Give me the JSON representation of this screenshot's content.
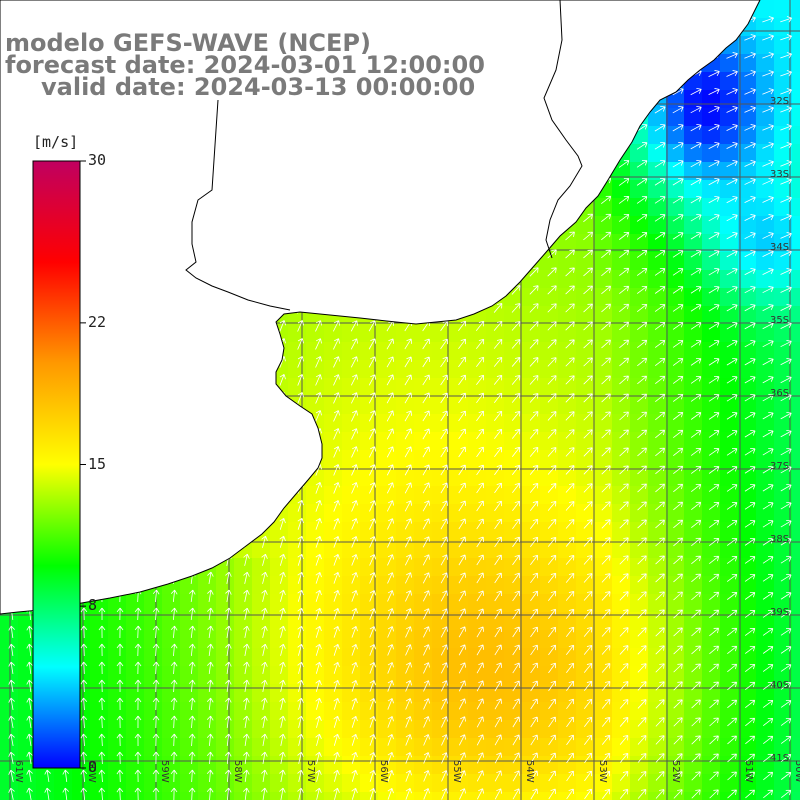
{
  "header": {
    "model": "modelo GEFS-WAVE (NCEP)",
    "forecast": "forecast date: 2024-03-01 12:00:00",
    "valid": "valid date: 2024-03-13 00:00:00"
  },
  "colorbar": {
    "unit": "[m/s]",
    "min": 0,
    "max": 30,
    "tick_labels": [
      "30",
      "22",
      "15",
      "8",
      "0"
    ],
    "tick_values": [
      30,
      22,
      15,
      8,
      0
    ],
    "colors": [
      "#0000ff",
      "#00ffff",
      "#00ff00",
      "#ffff00",
      "#ff9900",
      "#ff0000",
      "#c00060"
    ]
  },
  "map": {
    "quantity": "wind speed",
    "lat_labels": [
      "32S",
      "33S",
      "34S",
      "35S",
      "36S",
      "37S",
      "38S",
      "39S",
      "40S",
      "41S"
    ],
    "lon_labels": [
      "61W",
      "60W",
      "59W",
      "58W",
      "57W",
      "56W",
      "55W",
      "54W",
      "53W",
      "52W",
      "51W",
      "50W"
    ],
    "lon_range": [
      -62,
      -50
    ],
    "lat_range": [
      -41.5,
      -31
    ],
    "land_color": "#ffffff",
    "grid_color": "#555555",
    "vector_color": "#ffffff"
  }
}
